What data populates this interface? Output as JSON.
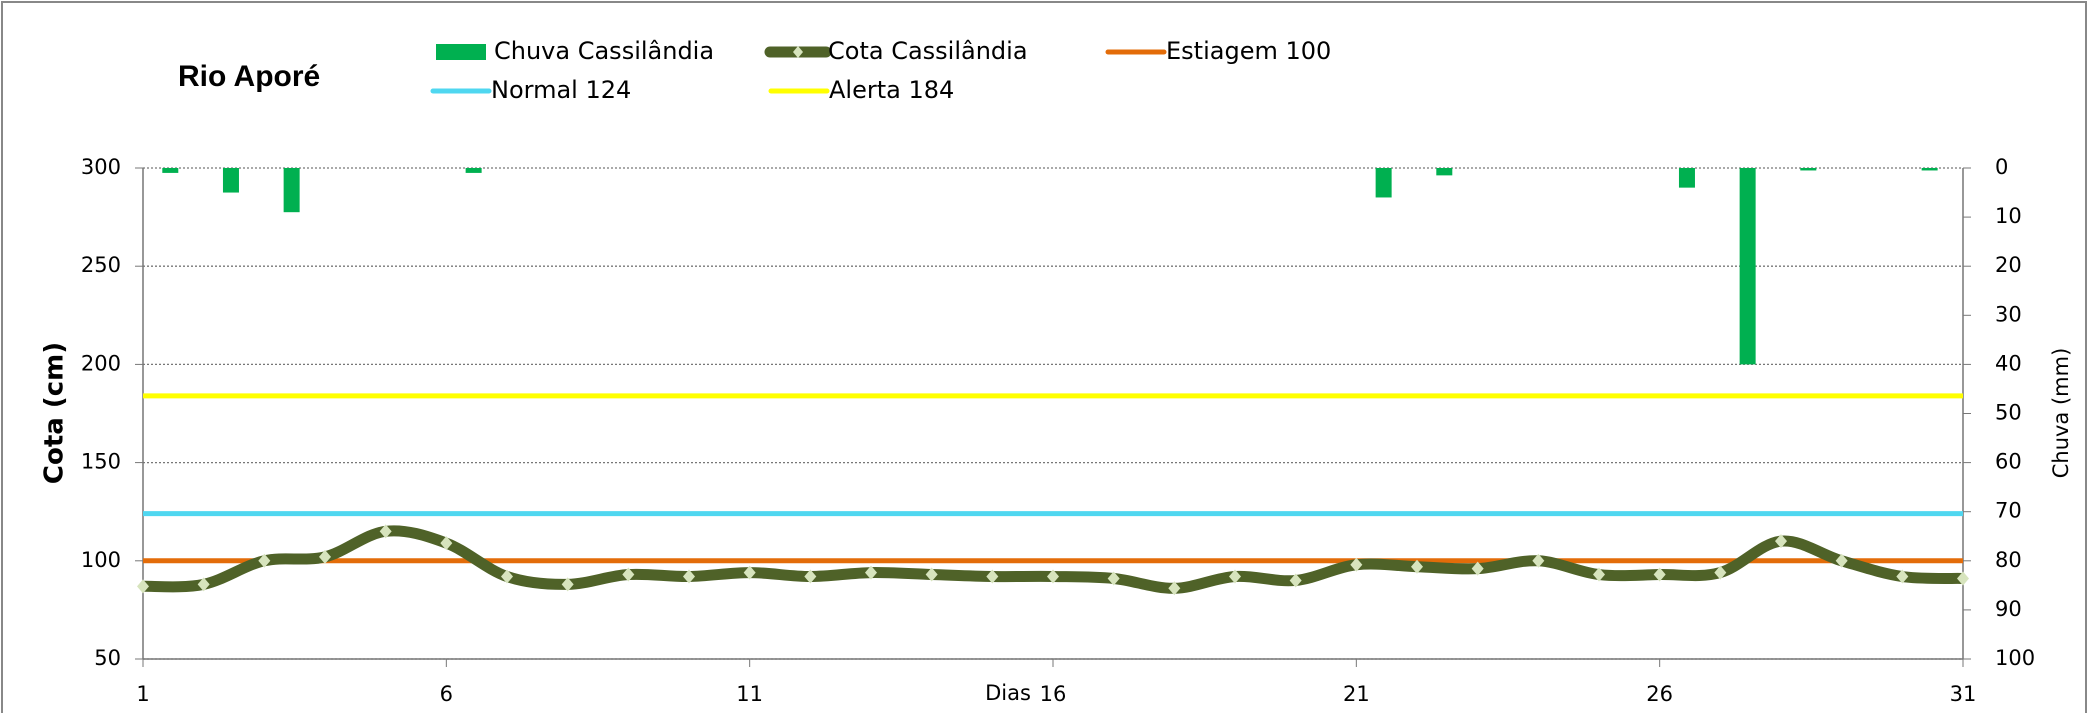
{
  "chart_data": {
    "type": "line",
    "title": "Rio Aporé",
    "x_label": "Dias",
    "y_label": "Cota  (cm)",
    "y2_label": "Chuva (mm)",
    "x": [
      1,
      2,
      3,
      4,
      5,
      6,
      7,
      8,
      9,
      10,
      11,
      12,
      13,
      14,
      15,
      16,
      17,
      18,
      19,
      20,
      21,
      22,
      23,
      24,
      25,
      26,
      27,
      28,
      29,
      30,
      31
    ],
    "xlim": [
      1,
      31
    ],
    "xticks": [
      1,
      6,
      11,
      16,
      21,
      26,
      31
    ],
    "ylim": [
      50,
      300
    ],
    "yticks": [
      50,
      100,
      150,
      200,
      250,
      300
    ],
    "y2lim": [
      0,
      100
    ],
    "y2ticks": [
      0,
      10,
      20,
      30,
      40,
      50,
      60,
      70,
      80,
      90,
      100
    ],
    "y2_inverted": true,
    "grid": true,
    "series": [
      {
        "name": "Chuva Cassilândia",
        "type": "bar",
        "axis": "y2",
        "color": "#00b050",
        "values": [
          1,
          5,
          9,
          0,
          0,
          1,
          0,
          0,
          0,
          0,
          0,
          0,
          0,
          0,
          0,
          0,
          0,
          0,
          0,
          0,
          6,
          1.5,
          0,
          0,
          0,
          4,
          40,
          0.5,
          0,
          0.5,
          0
        ]
      },
      {
        "name": "Cota Cassilândia",
        "type": "line",
        "color": "#4f6228",
        "marker_color": "#d7e4bd",
        "values": [
          87,
          88,
          100,
          102,
          115,
          109,
          92,
          88,
          93,
          92,
          94,
          92,
          94,
          93,
          92,
          92,
          91,
          86,
          92,
          90,
          98,
          97,
          96,
          100,
          93,
          93,
          94,
          110,
          100,
          92,
          91
        ]
      },
      {
        "name": "Estiagem 100",
        "type": "hline",
        "color": "#e36c09",
        "value": 100
      },
      {
        "name": "Normal  124",
        "type": "hline",
        "color": "#4fd7f0",
        "value": 124
      },
      {
        "name": "Alerta 184",
        "type": "hline",
        "color": "#ffff00",
        "value": 184
      }
    ]
  }
}
